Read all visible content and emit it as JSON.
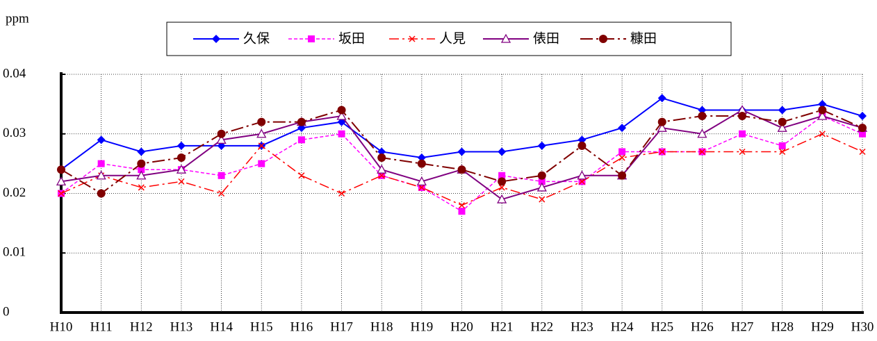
{
  "chart_data": {
    "type": "line",
    "y_label": "ppm",
    "categories": [
      "H10",
      "H11",
      "H12",
      "H13",
      "H14",
      "H15",
      "H16",
      "H17",
      "H18",
      "H19",
      "H20",
      "H21",
      "H22",
      "H23",
      "H24",
      "H25",
      "H26",
      "H27",
      "H28",
      "H29",
      "H30"
    ],
    "series": [
      {
        "name": "久保",
        "color": "#0000ff",
        "values": [
          0.024,
          0.029,
          0.027,
          0.028,
          0.028,
          0.028,
          0.031,
          0.032,
          0.027,
          0.026,
          0.027,
          0.027,
          0.028,
          0.029,
          0.031,
          0.036,
          0.034,
          0.034,
          0.034,
          0.035,
          0.033
        ]
      },
      {
        "name": "坂田",
        "color": "#ff00ff",
        "values": [
          0.02,
          0.025,
          0.024,
          0.024,
          0.023,
          0.025,
          0.029,
          0.03,
          0.023,
          0.021,
          0.017,
          0.023,
          0.022,
          0.022,
          0.027,
          0.027,
          0.027,
          0.03,
          0.028,
          0.033,
          0.03
        ]
      },
      {
        "name": "人見",
        "color": "#ff0000",
        "values": [
          0.02,
          0.023,
          0.021,
          0.022,
          0.02,
          0.028,
          0.023,
          0.02,
          0.023,
          0.021,
          0.018,
          0.021,
          0.019,
          0.022,
          0.026,
          0.027,
          0.027,
          0.027,
          0.027,
          0.03,
          0.027
        ]
      },
      {
        "name": "俵田",
        "color": "#800080",
        "values": [
          0.022,
          0.023,
          0.023,
          0.024,
          0.029,
          0.03,
          0.032,
          0.033,
          0.024,
          0.022,
          0.024,
          0.019,
          0.021,
          0.023,
          0.023,
          0.031,
          0.03,
          0.034,
          0.031,
          0.033,
          0.031
        ]
      },
      {
        "name": "糠田",
        "color": "#800000",
        "values": [
          0.024,
          0.02,
          0.025,
          0.026,
          0.03,
          0.032,
          0.032,
          0.034,
          0.026,
          0.025,
          0.024,
          0.022,
          0.023,
          0.028,
          0.023,
          0.032,
          0.033,
          0.033,
          0.032,
          0.034,
          0.031
        ]
      }
    ],
    "ylim": [
      0,
      0.04
    ],
    "yticks": [
      0,
      0.01,
      0.02,
      0.03,
      0.04
    ],
    "grid": true,
    "legend": "top"
  }
}
